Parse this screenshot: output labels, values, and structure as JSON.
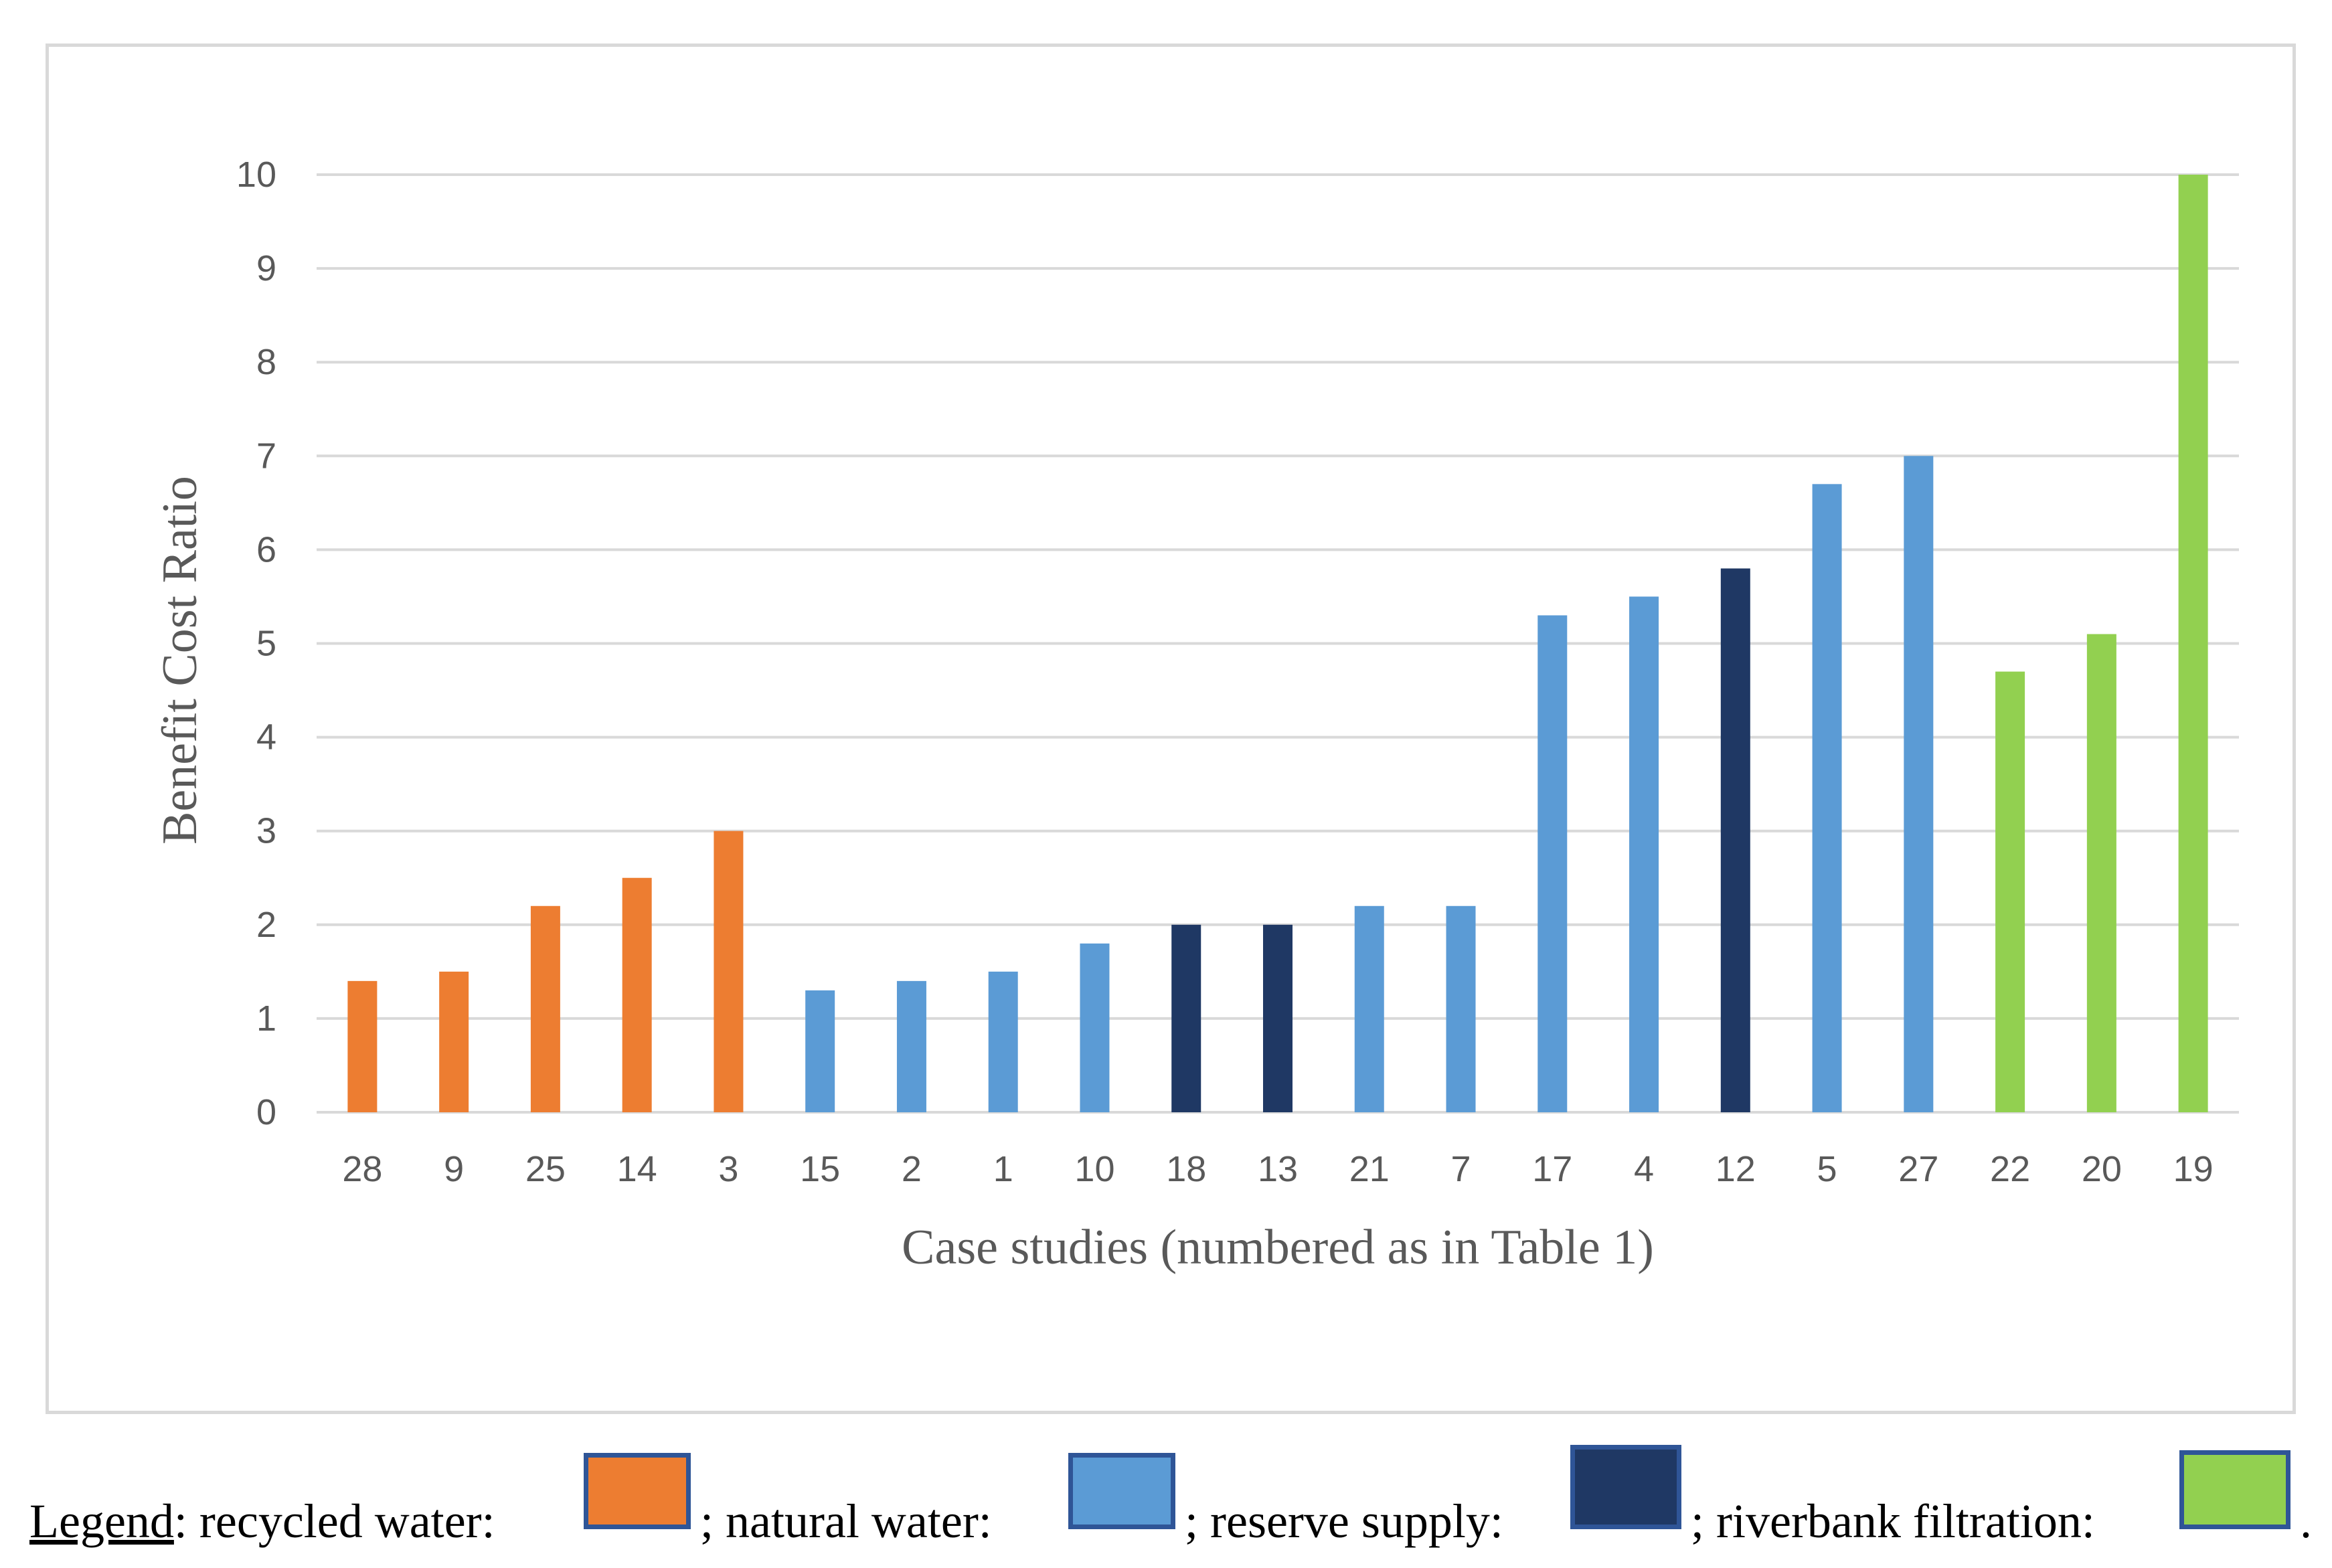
{
  "chart_data": {
    "type": "bar",
    "title": "",
    "xlabel": "Case studies (numbered as in Table 1)",
    "ylabel": "Benefit Cost Ratio",
    "ylim": [
      0,
      10
    ],
    "yticks": [
      0,
      1,
      2,
      3,
      4,
      5,
      6,
      7,
      8,
      9,
      10
    ],
    "grid": true,
    "categories": [
      "28",
      "9",
      "25",
      "14",
      "3",
      "15",
      "2",
      "1",
      "10",
      "18",
      "13",
      "21",
      "7",
      "17",
      "4",
      "12",
      "5",
      "27",
      "22",
      "20",
      "19"
    ],
    "values": [
      1.4,
      1.5,
      2.2,
      2.5,
      3.0,
      1.3,
      1.4,
      1.5,
      1.8,
      2.0,
      2.0,
      2.2,
      2.2,
      5.3,
      5.5,
      5.8,
      6.7,
      7.0,
      4.7,
      5.1,
      10.0
    ],
    "groups": [
      "recycled water",
      "recycled water",
      "recycled water",
      "recycled water",
      "recycled water",
      "natural water",
      "natural water",
      "natural water",
      "natural water",
      "reserve supply",
      "reserve supply",
      "natural water",
      "natural water",
      "natural water",
      "natural water",
      "reserve supply",
      "natural water",
      "natural water",
      "riverbank filtration",
      "riverbank filtration",
      "riverbank filtration"
    ],
    "group_colors": {
      "recycled water": "#ed7d31",
      "natural water": "#5b9bd5",
      "reserve supply": "#1f3864",
      "riverbank filtration": "#92d050"
    }
  },
  "legend": {
    "title": "Legend",
    "colon": ":",
    "entries": [
      {
        "label": " recycled water:",
        "sep": ";",
        "color": "#ed7d31"
      },
      {
        "label": " natural water:",
        "sep": ";",
        "color": "#5b9bd5"
      },
      {
        "label": " reserve supply:",
        "sep": ";",
        "color": "#1f3864"
      },
      {
        "label": " riverbank filtration:",
        "sep": ".",
        "color": "#92d050"
      }
    ],
    "swatch_border_color": "#2f5597"
  },
  "colors": {
    "gridline": "#d9d9d9",
    "tick_text": "#595959",
    "frame": "#d9d9d9"
  }
}
